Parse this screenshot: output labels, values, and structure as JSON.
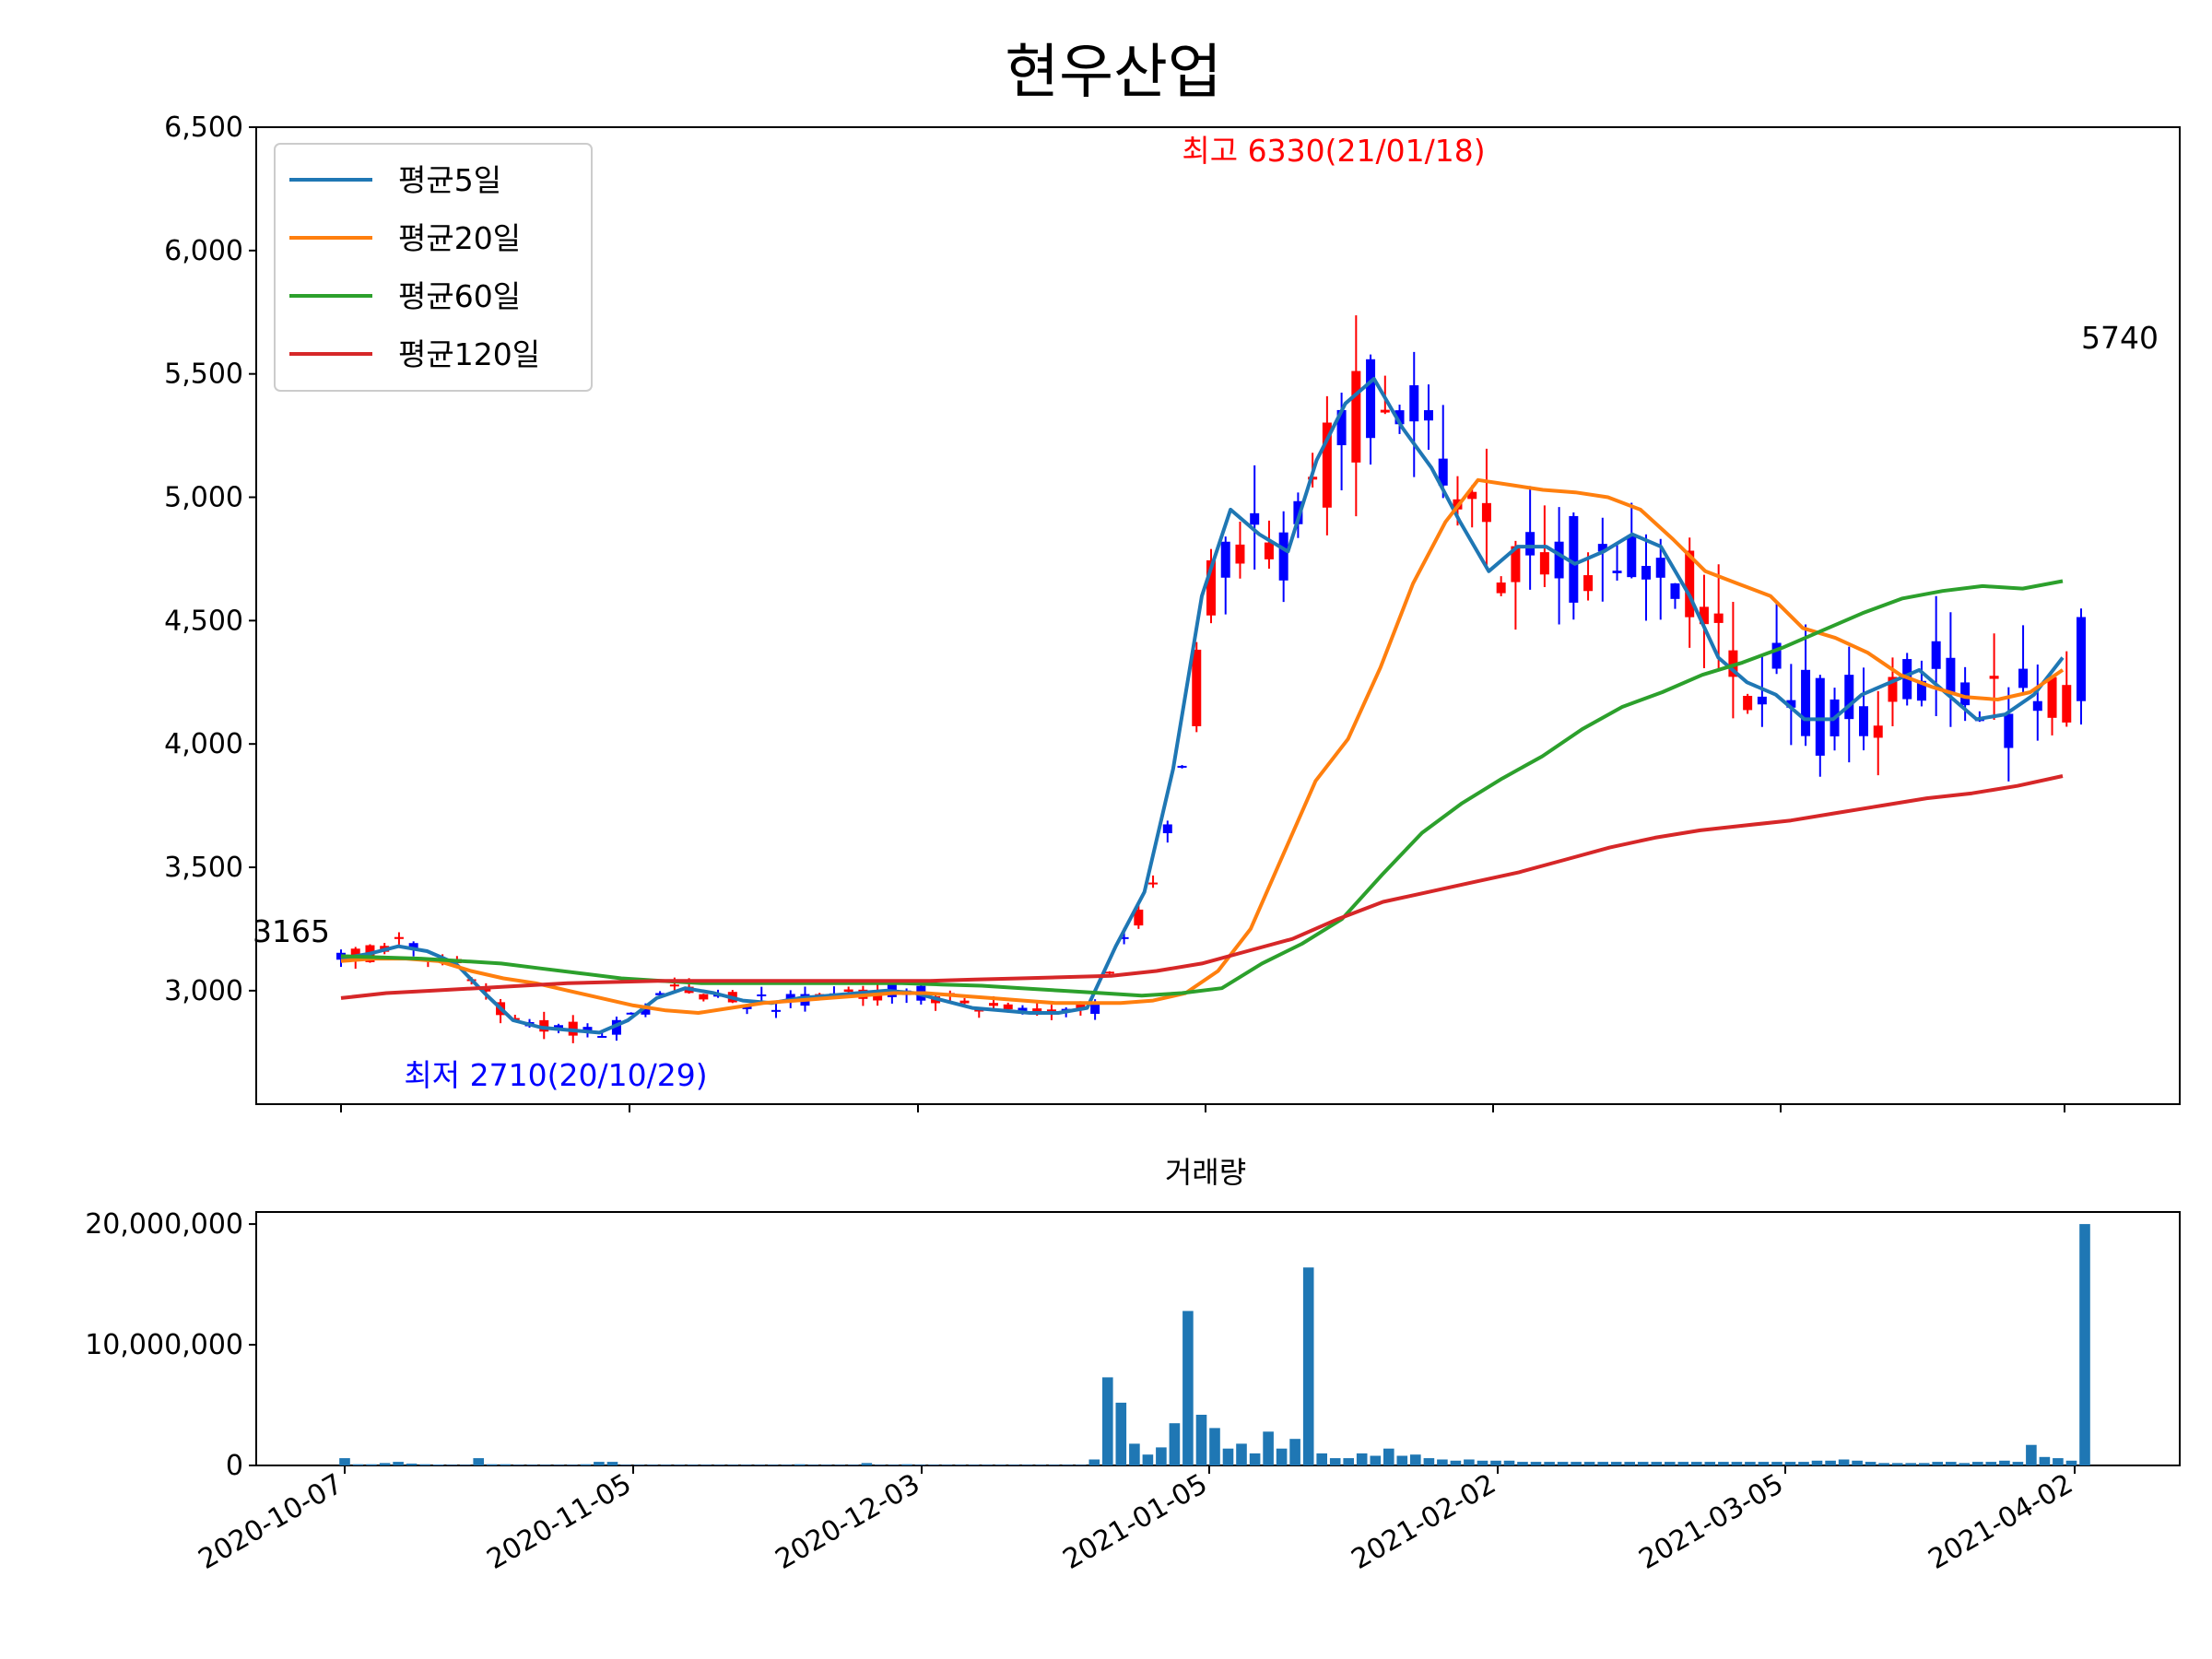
{
  "chart_data": [
    {
      "type": "candlestick",
      "title": "현우산업",
      "ylim": [
        2540,
        6500
      ],
      "y_ticks": [
        "3,000",
        "3,500",
        "4,000",
        "4,500",
        "5,000",
        "5,500",
        "6,000",
        "6,500"
      ],
      "y_tick_values": [
        3000,
        3500,
        4000,
        4500,
        5000,
        5500,
        6000,
        6500
      ],
      "grid": false,
      "legend_position": "top-left",
      "legend": [
        "평균5일",
        "평균20일",
        "평균60일",
        "평균120일"
      ],
      "series": [
        {
          "name": "평균5일",
          "color": "#1f77b4",
          "values": [
            3130,
            3150,
            3180,
            3160,
            3110,
            2990,
            2880,
            2850,
            2840,
            2830,
            2880,
            2970,
            3010,
            2990,
            2960,
            2950,
            2970,
            2980,
            2990,
            3000,
            2990,
            2960,
            2930,
            2920,
            2910,
            2910,
            2930,
            3180,
            3400,
            3900,
            4600,
            4950,
            4850,
            4780,
            5150,
            5380,
            5480,
            5280,
            5120,
            4900,
            4700,
            4800,
            4800,
            4730,
            4780,
            4850,
            4800,
            4600,
            4350,
            4250,
            4200,
            4100,
            4100,
            4200,
            4250,
            4300,
            4200,
            4100,
            4120,
            4200,
            4350
          ]
        },
        {
          "name": "평균20일",
          "color": "#ff7f0e",
          "values": [
            3120,
            3130,
            3130,
            3120,
            3080,
            3050,
            3030,
            3000,
            2970,
            2940,
            2920,
            2910,
            2930,
            2950,
            2960,
            2970,
            2980,
            2990,
            2990,
            2980,
            2970,
            2960,
            2950,
            2950,
            2950,
            2960,
            2990,
            3080,
            3250,
            3550,
            3850,
            4020,
            4310,
            4650,
            4900,
            5070,
            5050,
            5030,
            5020,
            5000,
            4950,
            4830,
            4700,
            4650,
            4600,
            4470,
            4430,
            4370,
            4280,
            4230,
            4190,
            4180,
            4210,
            4300
          ]
        },
        {
          "name": "평균60일",
          "color": "#2ca02c",
          "values": [
            3140,
            3135,
            3130,
            3120,
            3110,
            3090,
            3070,
            3050,
            3040,
            3030,
            3030,
            3030,
            3030,
            3030,
            3030,
            3025,
            3020,
            3010,
            3000,
            2990,
            2980,
            2990,
            3010,
            3110,
            3190,
            3290,
            3470,
            3640,
            3760,
            3860,
            3950,
            4060,
            4150,
            4210,
            4280,
            4330,
            4390,
            4460,
            4530,
            4590,
            4620,
            4640,
            4630,
            4660
          ]
        },
        {
          "name": "평균120일",
          "color": "#d62728",
          "values": [
            2970,
            2990,
            3000,
            3010,
            3020,
            3030,
            3035,
            3040,
            3040,
            3040,
            3040,
            3040,
            3040,
            3040,
            3045,
            3050,
            3055,
            3060,
            3080,
            3110,
            3160,
            3210,
            3290,
            3360,
            3400,
            3440,
            3480,
            3530,
            3580,
            3620,
            3650,
            3670,
            3690,
            3720,
            3750,
            3780,
            3800,
            3830,
            3870
          ]
        }
      ],
      "annotations": {
        "high": "최고 6330(21/01/18)",
        "low": "최저 2710(20/10/29)",
        "first_close": "3165",
        "last_close": "5740"
      },
      "colors": {
        "up": "#ff0000",
        "down": "#0000ff",
        "high_label": "#ff0000",
        "low_label": "#0000ff"
      }
    },
    {
      "type": "bar",
      "title": "거래량",
      "ylim": [
        0,
        21000000
      ],
      "y_ticks": [
        "0",
        "10,000,000",
        "20,000,000"
      ],
      "y_tick_values": [
        0,
        10000000,
        20000000
      ],
      "x_ticks": [
        "2020-10-07",
        "2020-11-05",
        "2020-12-03",
        "2021-01-05",
        "2021-02-02",
        "2021-03-05",
        "2021-04-02"
      ],
      "color": "#1f77b4",
      "values": [
        600000,
        100000,
        100000,
        200000,
        300000,
        150000,
        100000,
        80000,
        50000,
        50000,
        600000,
        100000,
        100000,
        50000,
        50000,
        50000,
        50000,
        50000,
        100000,
        300000,
        300000,
        50000,
        50000,
        50000,
        50000,
        50000,
        50000,
        50000,
        50000,
        50000,
        50000,
        50000,
        50000,
        50000,
        100000,
        50000,
        50000,
        50000,
        50000,
        200000,
        50000,
        50000,
        100000,
        50000,
        50000,
        50000,
        50000,
        50000,
        50000,
        50000,
        50000,
        50000,
        50000,
        50000,
        50000,
        50000,
        500000,
        7300000,
        5200000,
        1800000,
        900000,
        1500000,
        3500000,
        12800000,
        4200000,
        3100000,
        1400000,
        1800000,
        1000000,
        2800000,
        1400000,
        2200000,
        16400000,
        1000000,
        600000,
        600000,
        1000000,
        800000,
        1400000,
        800000,
        900000,
        600000,
        500000,
        400000,
        500000,
        400000,
        400000,
        400000,
        300000,
        300000,
        300000,
        300000,
        300000,
        300000,
        300000,
        300000,
        300000,
        300000,
        300000,
        300000,
        300000,
        300000,
        300000,
        300000,
        300000,
        300000,
        300000,
        300000,
        300000,
        300000,
        400000,
        400000,
        500000,
        400000,
        300000,
        200000,
        200000,
        200000,
        200000,
        300000,
        300000,
        200000,
        300000,
        300000,
        400000,
        300000,
        1700000,
        700000,
        600000,
        400000,
        20000000
      ]
    }
  ]
}
